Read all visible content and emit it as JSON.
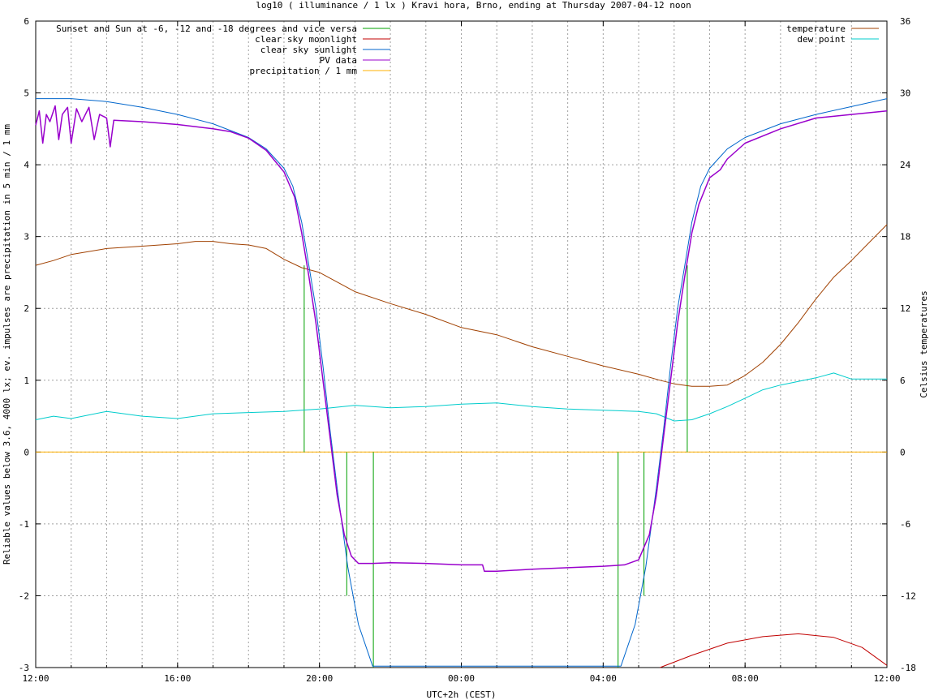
{
  "chart_data": {
    "type": "line",
    "title": "log10 ( illuminance / 1 lx ) Kravi hora, Brno, ending at Thursday 2007-04-12 noon",
    "xlabel": "UTC+2h (CEST)",
    "ylabel": "Reliable values below 3.6, 4000 lx; ev. impulses are precipitation in 5 min / 1 mm",
    "y2label": "Celsius temperatures",
    "x_unit": "hours since 12:00 (UTC+2h)",
    "xlim": [
      0,
      24
    ],
    "ylim": [
      -3,
      6
    ],
    "y2lim": [
      -18,
      36
    ],
    "grid": true,
    "x_ticks": [
      {
        "x": 0,
        "label": "12:00"
      },
      {
        "x": 4,
        "label": "16:00"
      },
      {
        "x": 8,
        "label": "20:00"
      },
      {
        "x": 12,
        "label": "00:00"
      },
      {
        "x": 16,
        "label": "04:00"
      },
      {
        "x": 20,
        "label": "08:00"
      },
      {
        "x": 24,
        "label": "12:00"
      }
    ],
    "y_ticks": [
      "-3",
      "-2",
      "-1",
      "0",
      "1",
      "2",
      "3",
      "4",
      "5",
      "6"
    ],
    "y2_ticks": [
      "-18",
      "-12",
      "-6",
      "0",
      "6",
      "12",
      "18",
      "24",
      "30",
      "36"
    ],
    "legend_left": [
      "Sunset and Sun at -6, -12 and -18 degrees and vice versa",
      "clear sky moonlight",
      "clear sky sunlight",
      "PV data",
      "precipitation / 1 mm"
    ],
    "legend_right": [
      "temperature",
      "dew point"
    ],
    "series": [
      {
        "name": "Sunset and Sun at -6, -12 and -18 degrees and vice versa",
        "axis": "y",
        "color": "#00a000",
        "kind": "impulses",
        "points": [
          [
            7.57,
            2.6
          ],
          [
            8.12,
            0.0
          ],
          [
            8.77,
            -2.0
          ],
          [
            9.52,
            -3.0
          ],
          [
            16.42,
            -3.0
          ],
          [
            17.15,
            -2.0
          ],
          [
            17.82,
            0.0
          ],
          [
            18.37,
            2.6
          ]
        ]
      },
      {
        "name": "clear sky moonlight",
        "axis": "y",
        "color": "#c00000",
        "points": [
          [
            17.6,
            -3.0
          ],
          [
            18.5,
            -2.83
          ],
          [
            19.5,
            -2.66
          ],
          [
            20.5,
            -2.57
          ],
          [
            21.5,
            -2.53
          ],
          [
            22.5,
            -2.58
          ],
          [
            23.3,
            -2.72
          ],
          [
            24.0,
            -2.97
          ]
        ]
      },
      {
        "name": "clear sky sunlight",
        "axis": "y",
        "color": "#0066cc",
        "points": [
          [
            0,
            4.92
          ],
          [
            1,
            4.92
          ],
          [
            2,
            4.88
          ],
          [
            3,
            4.8
          ],
          [
            4,
            4.7
          ],
          [
            5,
            4.57
          ],
          [
            6,
            4.38
          ],
          [
            6.5,
            4.22
          ],
          [
            7,
            3.95
          ],
          [
            7.25,
            3.7
          ],
          [
            7.5,
            3.2
          ],
          [
            7.7,
            2.6
          ],
          [
            7.9,
            2.0
          ],
          [
            8.1,
            1.2
          ],
          [
            8.3,
            0.3
          ],
          [
            8.5,
            -0.5
          ],
          [
            8.8,
            -1.6
          ],
          [
            9.1,
            -2.4
          ],
          [
            9.5,
            -2.98
          ],
          [
            16.5,
            -2.98
          ],
          [
            16.9,
            -2.4
          ],
          [
            17.2,
            -1.6
          ],
          [
            17.5,
            -0.5
          ],
          [
            17.7,
            0.3
          ],
          [
            17.9,
            1.2
          ],
          [
            18.1,
            2.0
          ],
          [
            18.3,
            2.6
          ],
          [
            18.5,
            3.2
          ],
          [
            18.75,
            3.7
          ],
          [
            19.0,
            3.95
          ],
          [
            19.5,
            4.22
          ],
          [
            20.0,
            4.38
          ],
          [
            21.0,
            4.57
          ],
          [
            22.0,
            4.7
          ],
          [
            23.0,
            4.81
          ],
          [
            24.0,
            4.92
          ]
        ]
      },
      {
        "name": "PV data",
        "axis": "y",
        "color": "#9900cc",
        "points": [
          [
            0,
            4.55
          ],
          [
            0.1,
            4.75
          ],
          [
            0.2,
            4.3
          ],
          [
            0.3,
            4.7
          ],
          [
            0.4,
            4.6
          ],
          [
            0.55,
            4.82
          ],
          [
            0.65,
            4.35
          ],
          [
            0.75,
            4.7
          ],
          [
            0.9,
            4.8
          ],
          [
            1.0,
            4.3
          ],
          [
            1.15,
            4.78
          ],
          [
            1.3,
            4.6
          ],
          [
            1.5,
            4.8
          ],
          [
            1.65,
            4.35
          ],
          [
            1.8,
            4.7
          ],
          [
            2.0,
            4.65
          ],
          [
            2.1,
            4.25
          ],
          [
            2.2,
            4.62
          ],
          [
            3,
            4.6
          ],
          [
            4,
            4.56
          ],
          [
            5,
            4.5
          ],
          [
            5.5,
            4.46
          ],
          [
            6,
            4.37
          ],
          [
            6.5,
            4.2
          ],
          [
            7,
            3.9
          ],
          [
            7.3,
            3.55
          ],
          [
            7.5,
            3.05
          ],
          [
            7.7,
            2.45
          ],
          [
            7.9,
            1.8
          ],
          [
            8.1,
            1.0
          ],
          [
            8.3,
            0.2
          ],
          [
            8.5,
            -0.6
          ],
          [
            8.7,
            -1.15
          ],
          [
            8.9,
            -1.45
          ],
          [
            9.1,
            -1.55
          ],
          [
            9.5,
            -1.55
          ],
          [
            10,
            -1.54
          ],
          [
            11,
            -1.55
          ],
          [
            12,
            -1.57
          ],
          [
            12.6,
            -1.57
          ],
          [
            12.65,
            -1.66
          ],
          [
            13,
            -1.66
          ],
          [
            14,
            -1.63
          ],
          [
            15,
            -1.61
          ],
          [
            16,
            -1.59
          ],
          [
            16.6,
            -1.57
          ],
          [
            17,
            -1.5
          ],
          [
            17.3,
            -1.15
          ],
          [
            17.5,
            -0.6
          ],
          [
            17.7,
            0.2
          ],
          [
            17.9,
            1.0
          ],
          [
            18.1,
            1.8
          ],
          [
            18.3,
            2.45
          ],
          [
            18.5,
            3.05
          ],
          [
            18.7,
            3.45
          ],
          [
            19.0,
            3.82
          ],
          [
            19.3,
            3.93
          ],
          [
            19.5,
            4.08
          ],
          [
            20,
            4.3
          ],
          [
            21,
            4.5
          ],
          [
            22,
            4.65
          ],
          [
            23,
            4.7
          ],
          [
            24,
            4.75
          ]
        ]
      },
      {
        "name": "precipitation / 1 mm",
        "axis": "y",
        "color": "#ffb000",
        "points": [
          [
            0,
            0
          ],
          [
            24,
            0
          ]
        ]
      },
      {
        "name": "temperature",
        "axis": "y2",
        "color": "#a04000",
        "points": [
          [
            0,
            15.6
          ],
          [
            0.5,
            16.0
          ],
          [
            1,
            16.5
          ],
          [
            2,
            17.0
          ],
          [
            3,
            17.2
          ],
          [
            4,
            17.4
          ],
          [
            4.5,
            17.6
          ],
          [
            5,
            17.6
          ],
          [
            5.5,
            17.4
          ],
          [
            6,
            17.3
          ],
          [
            6.5,
            17.0
          ],
          [
            7,
            16.1
          ],
          [
            7.5,
            15.4
          ],
          [
            8,
            15.0
          ],
          [
            9,
            13.4
          ],
          [
            10,
            12.4
          ],
          [
            11,
            11.5
          ],
          [
            12,
            10.4
          ],
          [
            13,
            9.8
          ],
          [
            14,
            8.8
          ],
          [
            15,
            8.0
          ],
          [
            16,
            7.2
          ],
          [
            17,
            6.5
          ],
          [
            17.6,
            6.0
          ],
          [
            18,
            5.7
          ],
          [
            18.5,
            5.5
          ],
          [
            19,
            5.5
          ],
          [
            19.5,
            5.6
          ],
          [
            20,
            6.4
          ],
          [
            20.5,
            7.5
          ],
          [
            21,
            9.0
          ],
          [
            21.5,
            10.8
          ],
          [
            22,
            12.8
          ],
          [
            22.5,
            14.6
          ],
          [
            23,
            16.0
          ],
          [
            23.5,
            17.5
          ],
          [
            24,
            19.0
          ]
        ]
      },
      {
        "name": "dew point",
        "axis": "y2",
        "color": "#00cccc",
        "points": [
          [
            0,
            2.7
          ],
          [
            0.5,
            3.0
          ],
          [
            1,
            2.8
          ],
          [
            2,
            3.4
          ],
          [
            3,
            3.0
          ],
          [
            4,
            2.8
          ],
          [
            5,
            3.2
          ],
          [
            6,
            3.3
          ],
          [
            7,
            3.4
          ],
          [
            8,
            3.6
          ],
          [
            9,
            3.9
          ],
          [
            10,
            3.7
          ],
          [
            11,
            3.8
          ],
          [
            12,
            4.0
          ],
          [
            13,
            4.1
          ],
          [
            14,
            3.8
          ],
          [
            15,
            3.6
          ],
          [
            16,
            3.5
          ],
          [
            17,
            3.4
          ],
          [
            17.5,
            3.2
          ],
          [
            18,
            2.6
          ],
          [
            18.5,
            2.7
          ],
          [
            19,
            3.2
          ],
          [
            19.5,
            3.8
          ],
          [
            20,
            4.5
          ],
          [
            20.5,
            5.2
          ],
          [
            21,
            5.6
          ],
          [
            22,
            6.2
          ],
          [
            22.5,
            6.6
          ],
          [
            23,
            6.1
          ],
          [
            24,
            6.1
          ]
        ]
      }
    ]
  }
}
